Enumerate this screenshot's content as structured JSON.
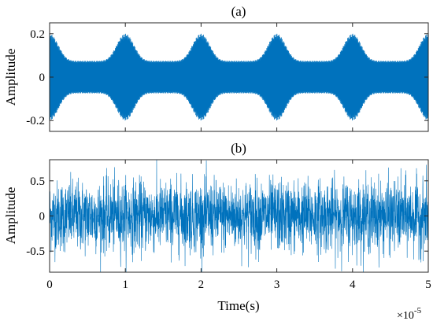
{
  "chart_data": [
    {
      "type": "line",
      "title": "(a)",
      "xlabel": "",
      "ylabel": "Amplitude",
      "xlim": [
        0,
        5
      ],
      "ylim": [
        -0.25,
        0.25
      ],
      "xticks": [
        0,
        1,
        2,
        3,
        4,
        5
      ],
      "yticks": [
        -0.2,
        0,
        0.2
      ],
      "ytick_labels": [
        "-0.2",
        "0",
        "0.2"
      ],
      "show_xtick_labels": false,
      "grid": false,
      "color": "#0072BD",
      "signal": "amplitude-modulated high-frequency carrier",
      "envelope_peaks_x": [
        0,
        1,
        2,
        3,
        4,
        5
      ],
      "envelope_peak_amplitude": 0.2,
      "envelope_trough_amplitude": 0.075
    },
    {
      "type": "line",
      "title": "(b)",
      "xlabel": "Time(s)",
      "ylabel": "Amplitude",
      "x_exponent_label": "×10",
      "x_exponent": "-5",
      "xlim": [
        0,
        5
      ],
      "ylim": [
        -0.8,
        0.8
      ],
      "xticks": [
        0,
        1,
        2,
        3,
        4,
        5
      ],
      "xtick_labels": [
        "0",
        "1",
        "2",
        "3",
        "4",
        "5"
      ],
      "yticks": [
        -0.5,
        0,
        0.5
      ],
      "ytick_labels": [
        "-0.5",
        "0",
        "0.5"
      ],
      "grid": false,
      "color": "#0072BD",
      "signal": "noisy signal",
      "noise_std": 0.25,
      "max_abs_amplitude": 0.8
    }
  ]
}
